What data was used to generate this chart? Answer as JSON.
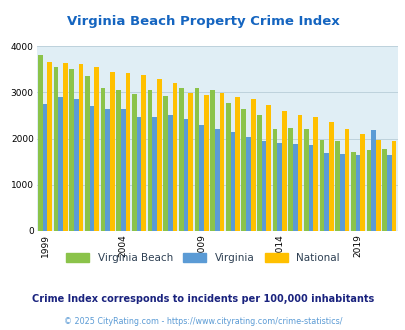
{
  "title": "Virginia Beach Property Crime Index",
  "title_color": "#1565C0",
  "subtitle": "Crime Index corresponds to incidents per 100,000 inhabitants",
  "copyright": "© 2025 CityRating.com - https://www.cityrating.com/crime-statistics/",
  "years": [
    1999,
    2000,
    2001,
    2002,
    2003,
    2004,
    2005,
    2006,
    2007,
    2008,
    2009,
    2010,
    2011,
    2012,
    2013,
    2014,
    2015,
    2016,
    2017,
    2018,
    2019,
    2020,
    2021
  ],
  "virginia_beach": [
    3800,
    3560,
    3500,
    3360,
    3090,
    3060,
    2970,
    3050,
    2920,
    3100,
    3100,
    3050,
    2780,
    2650,
    2500,
    2200,
    2220,
    2200,
    1970,
    1950,
    1710,
    1750,
    1780
  ],
  "virginia": [
    2750,
    2900,
    2860,
    2700,
    2650,
    2630,
    2470,
    2470,
    2520,
    2420,
    2300,
    2210,
    2150,
    2040,
    1940,
    1900,
    1880,
    1860,
    1680,
    1670,
    1650,
    2190,
    1640
  ],
  "national": [
    3660,
    3640,
    3620,
    3540,
    3450,
    3430,
    3370,
    3300,
    3210,
    2980,
    2940,
    2980,
    2900,
    2860,
    2730,
    2600,
    2500,
    2460,
    2360,
    2210,
    2110,
    1960,
    1950
  ],
  "vb_color": "#8bc34a",
  "va_color": "#5b9bd5",
  "nat_color": "#ffc000",
  "bg_color": "#e0eef5",
  "ylim": [
    0,
    4000
  ],
  "yticks": [
    0,
    1000,
    2000,
    3000,
    4000
  ],
  "xtick_years": [
    1999,
    2004,
    2009,
    2014,
    2019
  ],
  "grid_color": "#b8cdd8",
  "legend_labels": [
    "Virginia Beach",
    "Virginia",
    "National"
  ],
  "subtitle_color": "#1a237e",
  "copyright_color": "#5b9bd5",
  "label_color": "#2e4053"
}
